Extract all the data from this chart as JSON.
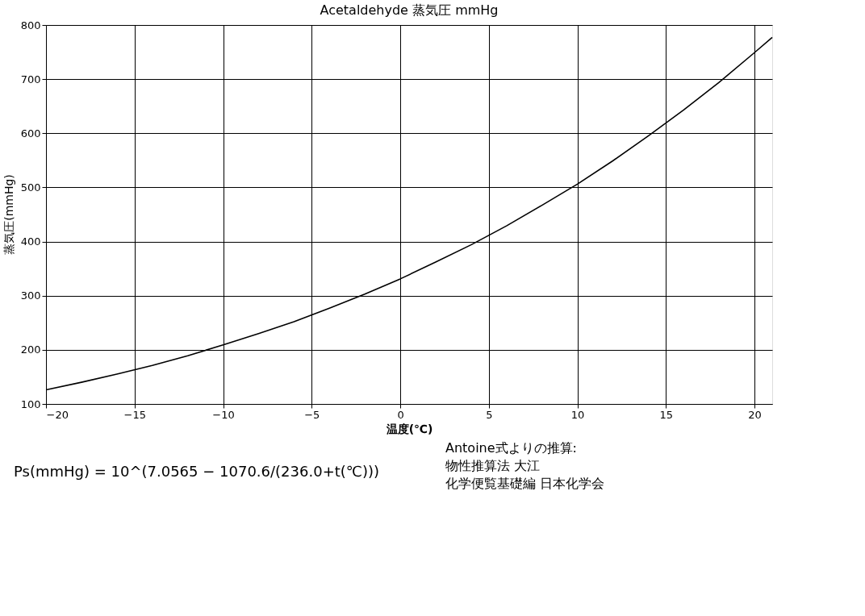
{
  "chart_data": {
    "type": "line",
    "title": "Acetaldehyde 蒸気圧 mmHg",
    "xlabel": "温度(℃)",
    "ylabel": "蒸気圧(mmHg)",
    "x": [
      -20,
      -18,
      -16,
      -14,
      -12,
      -10,
      -8,
      -6,
      -4,
      -2,
      0,
      2,
      4,
      6,
      8,
      10,
      12,
      14,
      16,
      18,
      20,
      21
    ],
    "series": [
      {
        "color": "#000000",
        "values": [
          126,
          140,
          155,
          171,
          189,
          209,
          230,
          252,
          277,
          303,
          331,
          362,
          394,
          429,
          467,
          506,
          549,
          595,
          643,
          694,
          749,
          777
        ]
      }
    ],
    "xlim": [
      -20,
      21
    ],
    "xticks": [
      -20,
      -15,
      -10,
      -5,
      0,
      5,
      10,
      15,
      20
    ],
    "ylim": [
      100,
      800
    ],
    "yticks": [
      100,
      200,
      300,
      400,
      500,
      600,
      700,
      800
    ],
    "grid": true,
    "marker": "none",
    "line_style": "solid",
    "annotations": [
      "Ps(mmHg) = 10^(7.0565 − 1070.6/(236.0+t(℃)))",
      "Antoine式よりの推算:",
      "物性推算法 大江",
      "化学便覧基礎編 日本化学会"
    ]
  }
}
